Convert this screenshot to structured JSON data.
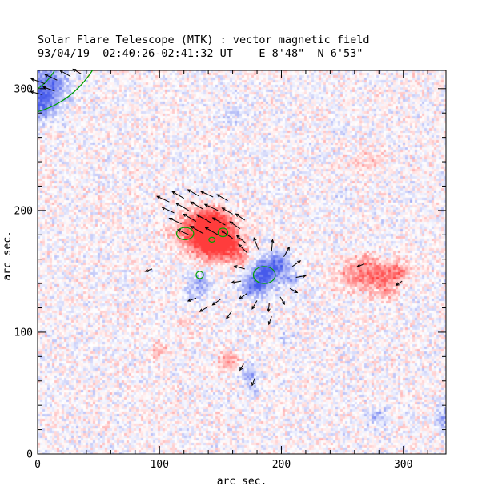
{
  "figure": {
    "title": "Solar Flare Telescope (MTK) : vector magnetic field",
    "subtitle": "93/04/19  02:40:26-02:41:32 UT    E 8'48\"  N 6'53\""
  },
  "axes": {
    "x": {
      "label": "arc sec.",
      "min": 0,
      "max": 335,
      "major_ticks": [
        0,
        100,
        200,
        300
      ],
      "minor_step": 20
    },
    "y": {
      "label": "arc sec.",
      "min": 0,
      "max": 315,
      "major_ticks": [
        0,
        100,
        200,
        300
      ],
      "minor_step": 20
    }
  },
  "chart_data": {
    "type": "heatmap",
    "title": "Solar Flare Telescope (MTK) : vector magnetic field",
    "subtitle": "93/04/19  02:40:26-02:41:32 UT    E 8'48\"  N 6'53\"",
    "xlabel": "arc sec.",
    "ylabel": "arc sec.",
    "xlim": [
      0,
      335
    ],
    "ylim": [
      0,
      315
    ],
    "colors": {
      "positive_polarity": "#ff3c3c",
      "negative_polarity": "#5a5aeb",
      "contour": "#00a000",
      "vector": "#000000",
      "background": "#ffffff"
    },
    "noise_amplitude": 0.4,
    "blobs_note": "magnetic flux features as [cx_arcsec, cy_arcsec, sigma_x, sigma_y, amplitude(+red,-blue)]",
    "blobs": [
      [
        132,
        183,
        13,
        10,
        0.95
      ],
      [
        149,
        178,
        11,
        11,
        0.9
      ],
      [
        143,
        193,
        9,
        7,
        0.6
      ],
      [
        140,
        170,
        8,
        7,
        0.6
      ],
      [
        159,
        168,
        8,
        7,
        0.55
      ],
      [
        168,
        158,
        5,
        5,
        0.35
      ],
      [
        261,
        147,
        11,
        9,
        0.55
      ],
      [
        282,
        144,
        9,
        8,
        0.6
      ],
      [
        296,
        151,
        7,
        6,
        0.55
      ],
      [
        272,
        158,
        7,
        5,
        0.35
      ],
      [
        288,
        132,
        5,
        4,
        0.3
      ],
      [
        156,
        77,
        7,
        5,
        0.5
      ],
      [
        100,
        85,
        5,
        4,
        0.45
      ],
      [
        120,
        107,
        4,
        3,
        0.3
      ],
      [
        270,
        240,
        11,
        8,
        0.18
      ],
      [
        186,
        148,
        9,
        8,
        -1.0
      ],
      [
        177,
        136,
        8,
        6,
        -0.6
      ],
      [
        197,
        158,
        7,
        6,
        -0.55
      ],
      [
        206,
        144,
        6,
        5,
        -0.45
      ],
      [
        133,
        140,
        7,
        5,
        -0.5
      ],
      [
        128,
        131,
        5,
        4,
        -0.35
      ],
      [
        173,
        66,
        5,
        5,
        -0.5
      ],
      [
        177,
        52,
        3,
        4,
        -0.35
      ],
      [
        5,
        302,
        13,
        13,
        -0.8
      ],
      [
        2,
        285,
        8,
        8,
        -0.5
      ],
      [
        160,
        278,
        9,
        6,
        -0.2
      ],
      [
        278,
        31,
        6,
        5,
        -0.4
      ],
      [
        333,
        29,
        5,
        7,
        -0.45
      ],
      [
        203,
        96,
        4,
        4,
        -0.25
      ],
      [
        251,
        212,
        5,
        4,
        -0.2
      ],
      [
        305,
        210,
        5,
        4,
        -0.18
      ],
      [
        250,
        266,
        4,
        4,
        -0.18
      ]
    ],
    "contours_note": "green contour ellipses as [cx, cy, rx, ry] in arcsec",
    "contours": [
      [
        121,
        181,
        7,
        5
      ],
      [
        152,
        182,
        4,
        3.5
      ],
      [
        143,
        176,
        2.5,
        2
      ],
      [
        133,
        147,
        3,
        3
      ],
      [
        186,
        147,
        9,
        7
      ]
    ],
    "contour_arcs": [
      {
        "start": [
          0,
          281
        ],
        "control": [
          28,
          289
        ],
        "end": [
          45,
          315
        ]
      },
      {
        "start": [
          0,
          300
        ],
        "control": [
          8,
          305
        ],
        "end": [
          14,
          315
        ]
      }
    ],
    "vectors_note": "transverse field vectors as [x_arcsec, y_arcsec, angle_deg_ccw_from_east, length_arcsec]",
    "vectors": [
      [
        108,
        207,
        155,
        11
      ],
      [
        120,
        210,
        150,
        11
      ],
      [
        132,
        212,
        150,
        10
      ],
      [
        144,
        211,
        155,
        11
      ],
      [
        156,
        208,
        150,
        10
      ],
      [
        112,
        198,
        155,
        11
      ],
      [
        124,
        200,
        150,
        12
      ],
      [
        136,
        201,
        150,
        12
      ],
      [
        148,
        200,
        155,
        12
      ],
      [
        160,
        197,
        150,
        10
      ],
      [
        170,
        192,
        145,
        9
      ],
      [
        118,
        189,
        155,
        11
      ],
      [
        130,
        191,
        150,
        12
      ],
      [
        142,
        190,
        150,
        13
      ],
      [
        154,
        188,
        150,
        12
      ],
      [
        166,
        185,
        145,
        10
      ],
      [
        124,
        180,
        155,
        10
      ],
      [
        136,
        181,
        150,
        12
      ],
      [
        148,
        180,
        150,
        12
      ],
      [
        160,
        177,
        145,
        11
      ],
      [
        171,
        173,
        140,
        10
      ],
      [
        172,
        165,
        135,
        10
      ],
      [
        181,
        168,
        110,
        10
      ],
      [
        192,
        167,
        85,
        9
      ],
      [
        202,
        162,
        60,
        9
      ],
      [
        209,
        154,
        35,
        8
      ],
      [
        212,
        145,
        10,
        8
      ],
      [
        170,
        152,
        165,
        9
      ],
      [
        167,
        142,
        190,
        8
      ],
      [
        172,
        132,
        215,
        8
      ],
      [
        180,
        126,
        240,
        8
      ],
      [
        190,
        124,
        265,
        7
      ],
      [
        199,
        129,
        300,
        7
      ],
      [
        207,
        136,
        330,
        7
      ],
      [
        150,
        127,
        215,
        8
      ],
      [
        140,
        121,
        210,
        8
      ],
      [
        159,
        117,
        235,
        7
      ],
      [
        130,
        128,
        200,
        7
      ],
      [
        169,
        74,
        240,
        6
      ],
      [
        178,
        62,
        250,
        6
      ],
      [
        192,
        113,
        250,
        7
      ],
      [
        6,
        304,
        160,
        12
      ],
      [
        16,
        307,
        155,
        11
      ],
      [
        27,
        310,
        150,
        10
      ],
      [
        4,
        295,
        165,
        10
      ],
      [
        14,
        298,
        160,
        10
      ],
      [
        36,
        312,
        150,
        8
      ],
      [
        268,
        156,
        200,
        6
      ],
      [
        299,
        142,
        215,
        6
      ],
      [
        94,
        152,
        200,
        6
      ]
    ]
  }
}
